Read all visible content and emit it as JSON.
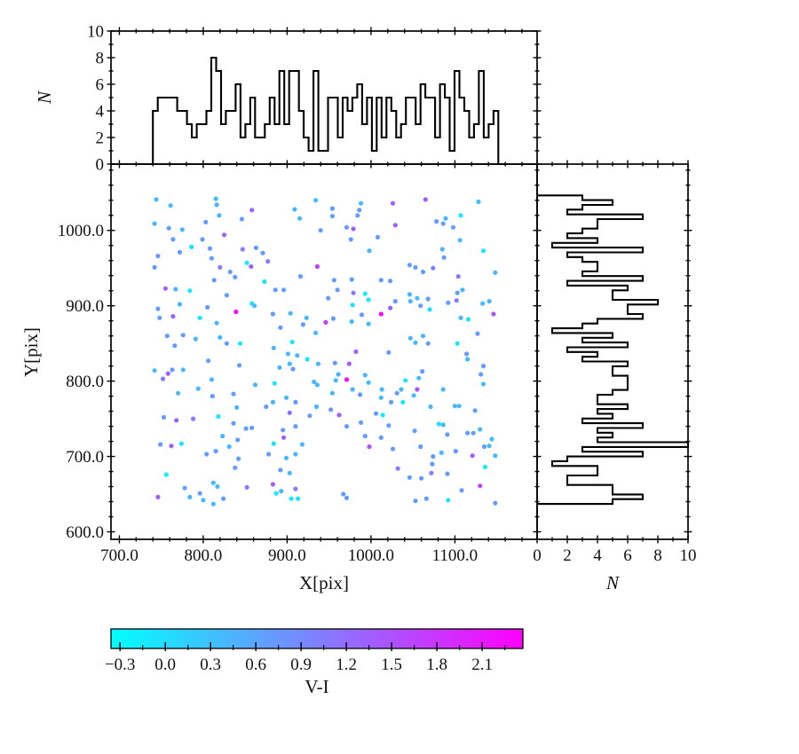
{
  "labels": {
    "x_axis": "X[pix]",
    "y_axis": "Y[pix]",
    "n_top": "N",
    "n_right": "N",
    "colorbar": "V-I"
  },
  "axes": {
    "main": {
      "x_range": [
        690,
        1198
      ],
      "y_range": [
        590,
        1088
      ],
      "x_major_ticks": [
        700,
        800,
        900,
        1000,
        1100
      ],
      "x_tick_labels": [
        "700.0",
        "800.0",
        "900.0",
        "1000.0",
        "1100.0"
      ],
      "x_minor_step": 20,
      "y_major_ticks": [
        600,
        700,
        800,
        900,
        1000
      ],
      "y_tick_labels": [
        "600.0",
        "700.0",
        "800.0",
        "900.0",
        "1000.0"
      ],
      "y_minor_step": 20
    },
    "top_hist": {
      "n_range": [
        0,
        10
      ],
      "n_major_ticks": [
        0,
        2,
        4,
        6,
        8,
        10
      ],
      "n_tick_labels": [
        "0",
        "2",
        "4",
        "6",
        "8",
        "10"
      ],
      "n_minor_ticks": [
        1,
        3,
        5,
        7,
        9
      ]
    },
    "right_hist": {
      "n_range": [
        0,
        10
      ],
      "n_major_ticks": [
        0,
        2,
        4,
        6,
        8,
        10
      ],
      "n_tick_labels": [
        "0",
        "2",
        "4",
        "6",
        "8",
        "10"
      ],
      "n_minor_ticks": [
        1,
        3,
        5,
        7,
        9
      ]
    },
    "colorbar": {
      "range": [
        -0.36,
        2.37
      ],
      "major_ticks": [
        -0.3,
        0.0,
        0.3,
        0.6,
        0.9,
        1.2,
        1.5,
        1.8,
        2.1
      ],
      "tick_labels": [
        "−0.3",
        "0.0",
        "0.3",
        "0.6",
        "0.9",
        "1.2",
        "1.5",
        "1.8",
        "2.1"
      ],
      "minor_step": 0.15,
      "colormap": "cool",
      "start_color": "#00ffff",
      "end_color": "#ff00ff"
    }
  },
  "chart_data": {
    "type": "scatter",
    "title": "",
    "xlabel": "X[pix]",
    "ylabel": "Y[pix]",
    "colorbar_label": "V-I",
    "x_range": [
      690,
      1198
    ],
    "y_range": [
      590,
      1088
    ],
    "color_range": [
      -0.36,
      2.37
    ],
    "colormap": "cool",
    "grid": false,
    "marginal_top_histogram": {
      "axis": "x",
      "bin_start": 740,
      "bin_width": 5.8,
      "bin_count": 72,
      "count_range": [
        0,
        10
      ],
      "style": "step",
      "color": "#000000"
    },
    "marginal_right_histogram": {
      "axis": "y",
      "bin_start": 637,
      "bin_width": 6.3,
      "bin_count": 65,
      "count_range": [
        0,
        10
      ],
      "style": "step",
      "color": "#000000"
    },
    "points": [
      [
        744,
        1041,
        0.4
      ],
      [
        761,
        1033,
        0.4
      ],
      [
        934,
        1040,
        0.35
      ],
      [
        815,
        1042,
        0.4
      ],
      [
        816,
        1034,
        0.45
      ],
      [
        858,
        1027,
        1.3
      ],
      [
        909,
        1028,
        0.4
      ],
      [
        819,
        1020,
        0.45
      ],
      [
        846,
        1015,
        0.7
      ],
      [
        742,
        1009,
        0.4
      ],
      [
        759,
        1003,
        0.7
      ],
      [
        803,
        1011,
        0.7
      ],
      [
        775,
        1001,
        0.4
      ],
      [
        915,
        1016,
        0.4
      ],
      [
        940,
        1000,
        0.7
      ],
      [
        825,
        994,
        1.3
      ],
      [
        764,
        988,
        0.7
      ],
      [
        799,
        988,
        0.7
      ],
      [
        786,
        978,
        -0.05
      ],
      [
        808,
        976,
        0.7
      ],
      [
        847,
        975,
        1.0
      ],
      [
        863,
        977,
        0.7
      ],
      [
        772,
        971,
        0.7
      ],
      [
        810,
        963,
        0.7
      ],
      [
        746,
        966,
        0.7
      ],
      [
        871,
        970,
        0.7
      ],
      [
        877,
        959,
        1.05
      ],
      [
        852,
        957,
        -0.1
      ],
      [
        857,
        952,
        1.3
      ],
      [
        742,
        951,
        0.7
      ],
      [
        820,
        951,
        1.05
      ],
      [
        832,
        945,
        0.7
      ],
      [
        838,
        938,
        0.7
      ],
      [
        813,
        934,
        0.7
      ],
      [
        916,
        939,
        0.7
      ],
      [
        936,
        952,
        1.7
      ],
      [
        873,
        932,
        -0.05
      ],
      [
        886,
        921,
        0.7
      ],
      [
        896,
        921,
        0.7
      ],
      [
        755,
        923,
        1.35
      ],
      [
        767,
        922,
        0.4
      ],
      [
        784,
        920,
        -0.1
      ],
      [
        828,
        914,
        0.7
      ],
      [
        772,
        902,
        0.4
      ],
      [
        858,
        903,
        -0.05
      ],
      [
        861,
        900,
        0.4
      ],
      [
        805,
        898,
        0.7
      ],
      [
        839,
        892,
        2.3
      ],
      [
        746,
        896,
        0.7
      ],
      [
        748,
        884,
        0.7
      ],
      [
        764,
        886,
        1.35
      ],
      [
        796,
        884,
        -0.1
      ],
      [
        816,
        877,
        0.4
      ],
      [
        883,
        889,
        0.7
      ],
      [
        904,
        890,
        0.4
      ],
      [
        892,
        871,
        0.7
      ],
      [
        919,
        875,
        0.7
      ],
      [
        923,
        884,
        0.4
      ],
      [
        934,
        864,
        0.4
      ],
      [
        757,
        860,
        0.7
      ],
      [
        776,
        861,
        0.7
      ],
      [
        791,
        856,
        0.4
      ],
      [
        820,
        858,
        0.4
      ],
      [
        828,
        850,
        0.7
      ],
      [
        844,
        850,
        -0.1
      ],
      [
        766,
        847,
        0.7
      ],
      [
        884,
        844,
        0.4
      ],
      [
        906,
        852,
        -0.05
      ],
      [
        988,
        1036,
        0.4
      ],
      [
        954,
        1029,
        0.7
      ],
      [
        954,
        1019,
        0.7
      ],
      [
        986,
        1027,
        0.7
      ],
      [
        984,
        1020,
        0.7
      ],
      [
        1026,
        1036,
        1.35
      ],
      [
        1065,
        1041,
        1.35
      ],
      [
        1128,
        1038,
        0.4
      ],
      [
        971,
        1004,
        0.7
      ],
      [
        979,
        1002,
        1.3
      ],
      [
        1029,
        1007,
        1.35
      ],
      [
        1078,
        1012,
        0.7
      ],
      [
        1086,
        1009,
        0.7
      ],
      [
        1098,
        1004,
        0.7
      ],
      [
        1089,
        1016,
        0.4
      ],
      [
        1107,
        1020,
        -0.1
      ],
      [
        976,
        988,
        0.7
      ],
      [
        1008,
        991,
        0.7
      ],
      [
        1106,
        987,
        0.4
      ],
      [
        998,
        973,
        0.4
      ],
      [
        1085,
        975,
        0.4
      ],
      [
        1087,
        964,
        0.7
      ],
      [
        1134,
        973,
        -0.05
      ],
      [
        1046,
        954,
        0.7
      ],
      [
        1053,
        951,
        0.7
      ],
      [
        1062,
        945,
        0.7
      ],
      [
        1074,
        950,
        1.0
      ],
      [
        1104,
        939,
        1.05
      ],
      [
        1148,
        944,
        0.4
      ],
      [
        956,
        934,
        0.7
      ],
      [
        977,
        935,
        0.7
      ],
      [
        1012,
        934,
        0.7
      ],
      [
        1023,
        933,
        0.7
      ],
      [
        960,
        921,
        0.7
      ],
      [
        979,
        917,
        1.05
      ],
      [
        993,
        916,
        -0.15
      ],
      [
        997,
        908,
        -0.1
      ],
      [
        949,
        910,
        0.7
      ],
      [
        978,
        901,
        -0.05
      ],
      [
        989,
        888,
        0.7
      ],
      [
        977,
        879,
        0.4
      ],
      [
        946,
        878,
        1.7
      ],
      [
        955,
        883,
        0.7
      ],
      [
        997,
        876,
        0.4
      ],
      [
        1012,
        889,
        2.25
      ],
      [
        1023,
        897,
        1.35
      ],
      [
        1029,
        906,
        0.7
      ],
      [
        1046,
        915,
        0.4
      ],
      [
        1047,
        906,
        0.4
      ],
      [
        1055,
        910,
        0.4
      ],
      [
        1059,
        900,
        0.7
      ],
      [
        1068,
        909,
        0.7
      ],
      [
        1070,
        895,
        -0.05
      ],
      [
        1092,
        904,
        0.7
      ],
      [
        1102,
        907,
        1.05
      ],
      [
        1103,
        917,
        0.7
      ],
      [
        1109,
        921,
        0.4
      ],
      [
        1133,
        903,
        0.4
      ],
      [
        1141,
        906,
        0.4
      ],
      [
        1107,
        884,
        0.4
      ],
      [
        1116,
        882,
        -0.05
      ],
      [
        1146,
        889,
        1.5
      ],
      [
        1127,
        863,
        0.7
      ],
      [
        1047,
        857,
        0.4
      ],
      [
        1053,
        851,
        0.4
      ],
      [
        1062,
        860,
        0.4
      ],
      [
        1068,
        850,
        0.7
      ],
      [
        1103,
        850,
        -0.1
      ],
      [
        901,
        836,
        0.4
      ],
      [
        912,
        834,
        0.4
      ],
      [
        924,
        829,
        -0.05
      ],
      [
        937,
        823,
        0.4
      ],
      [
        806,
        827,
        0.7
      ],
      [
        843,
        821,
        0.7
      ],
      [
        742,
        814,
        0.4
      ],
      [
        758,
        810,
        1.35
      ],
      [
        763,
        815,
        0.7
      ],
      [
        776,
        815,
        0.4
      ],
      [
        752,
        803,
        1.05
      ],
      [
        810,
        802,
        0.4
      ],
      [
        891,
        818,
        0.4
      ],
      [
        907,
        816,
        0.7
      ],
      [
        903,
        823,
        0.4
      ],
      [
        862,
        795,
        0.4
      ],
      [
        885,
        797,
        -0.1
      ],
      [
        770,
        784,
        0.4
      ],
      [
        794,
        790,
        0.4
      ],
      [
        811,
        780,
        0.7
      ],
      [
        836,
        783,
        0.7
      ],
      [
        899,
        778,
        0.4
      ],
      [
        932,
        799,
        0.4
      ],
      [
        936,
        795,
        0.4
      ],
      [
        840,
        765,
        0.4
      ],
      [
        875,
        766,
        0.7
      ],
      [
        883,
        772,
        0.4
      ],
      [
        935,
        766,
        0.4
      ],
      [
        910,
        772,
        0.7
      ],
      [
        753,
        752,
        0.7
      ],
      [
        768,
        748,
        1.35
      ],
      [
        788,
        750,
        1.05
      ],
      [
        818,
        753,
        -0.1
      ],
      [
        836,
        744,
        0.7
      ],
      [
        851,
        737,
        0.7
      ],
      [
        858,
        738,
        0.7
      ],
      [
        903,
        758,
        1.2
      ],
      [
        927,
        754,
        0.7
      ],
      [
        910,
        740,
        0.7
      ],
      [
        895,
        735,
        0.7
      ],
      [
        896,
        725,
        1.35
      ],
      [
        884,
        717,
        -0.05
      ],
      [
        841,
        722,
        0.7
      ],
      [
        831,
        713,
        0.4
      ],
      [
        823,
        727,
        0.4
      ],
      [
        749,
        716,
        0.7
      ],
      [
        762,
        714,
        1.35
      ],
      [
        774,
        717,
        -0.1
      ],
      [
        804,
        703,
        0.7
      ],
      [
        815,
        707,
        0.7
      ],
      [
        842,
        697,
        0.7
      ],
      [
        878,
        703,
        0.7
      ],
      [
        899,
        698,
        0.4
      ],
      [
        910,
        703,
        0.4
      ],
      [
        918,
        716,
        0.4
      ],
      [
        838,
        685,
        0.7
      ],
      [
        892,
        682,
        0.7
      ],
      [
        903,
        678,
        0.4
      ],
      [
        756,
        676,
        -0.2
      ],
      [
        778,
        658,
        0.7
      ],
      [
        784,
        646,
        0.4
      ],
      [
        796,
        651,
        0.7
      ],
      [
        800,
        642,
        0.4
      ],
      [
        812,
        665,
        0.4
      ],
      [
        817,
        660,
        0.4
      ],
      [
        824,
        644,
        0.7
      ],
      [
        812,
        637,
        0.4
      ],
      [
        852,
        659,
        1.05
      ],
      [
        883,
        663,
        1.35
      ],
      [
        887,
        651,
        -0.1
      ],
      [
        893,
        654,
        0.4
      ],
      [
        905,
        644,
        -0.1
      ],
      [
        913,
        644,
        -0.05
      ],
      [
        910,
        657,
        1.05
      ],
      [
        746,
        646,
        1.35
      ],
      [
        982,
        839,
        1.35
      ],
      [
        1021,
        838,
        0.7
      ],
      [
        1114,
        836,
        0.7
      ],
      [
        1115,
        829,
        0.4
      ],
      [
        957,
        824,
        0.7
      ],
      [
        974,
        823,
        1.35
      ],
      [
        1134,
        820,
        0.7
      ],
      [
        961,
        809,
        0.4
      ],
      [
        958,
        801,
        0.4
      ],
      [
        971,
        802,
        2.3
      ],
      [
        993,
        808,
        0.4
      ],
      [
        997,
        798,
        0.4
      ],
      [
        1061,
        813,
        0.7
      ],
      [
        1057,
        804,
        0.4
      ],
      [
        1041,
        801,
        -0.1
      ],
      [
        1131,
        809,
        0.7
      ],
      [
        1134,
        796,
        0.4
      ],
      [
        978,
        789,
        0.4
      ],
      [
        954,
        784,
        0.4
      ],
      [
        987,
        782,
        0.7
      ],
      [
        1013,
        789,
        0.4
      ],
      [
        1012,
        778,
        0.4
      ],
      [
        1036,
        789,
        0.4
      ],
      [
        1031,
        784,
        0.7
      ],
      [
        1055,
        789,
        1.5
      ],
      [
        1051,
        781,
        0.4
      ],
      [
        1038,
        772,
        -0.1
      ],
      [
        1024,
        772,
        0.7
      ],
      [
        1086,
        789,
        0.4
      ],
      [
        1071,
        766,
        0.4
      ],
      [
        1100,
        767,
        0.4
      ],
      [
        1105,
        767,
        0.4
      ],
      [
        1124,
        761,
        0.7
      ],
      [
        952,
        762,
        0.7
      ],
      [
        962,
        755,
        1.35
      ],
      [
        988,
        745,
        0.7
      ],
      [
        971,
        740,
        0.7
      ],
      [
        1006,
        757,
        0.7
      ],
      [
        1014,
        755,
        -0.1
      ],
      [
        1021,
        741,
        0.7
      ],
      [
        993,
        727,
        0.7
      ],
      [
        1012,
        725,
        0.7
      ],
      [
        1052,
        734,
        0.7
      ],
      [
        1081,
        743,
        -0.05
      ],
      [
        1086,
        742,
        0.4
      ],
      [
        1091,
        729,
        0.7
      ],
      [
        1115,
        731,
        0.7
      ],
      [
        1122,
        731,
        0.7
      ],
      [
        1130,
        736,
        0.4
      ],
      [
        998,
        713,
        1.5
      ],
      [
        1026,
        710,
        0.7
      ],
      [
        1059,
        713,
        0.7
      ],
      [
        1074,
        700,
        0.7
      ],
      [
        1073,
        690,
        0.7
      ],
      [
        1084,
        705,
        0.4
      ],
      [
        1101,
        707,
        0.7
      ],
      [
        1121,
        701,
        1.4
      ],
      [
        1135,
        713,
        0.7
      ],
      [
        1141,
        714,
        0.4
      ],
      [
        1144,
        723,
        0.4
      ],
      [
        1136,
        686,
        -0.1
      ],
      [
        1148,
        701,
        0.4
      ],
      [
        1032,
        684,
        1.05
      ],
      [
        1046,
        672,
        0.7
      ],
      [
        1060,
        671,
        0.7
      ],
      [
        1072,
        678,
        1.05
      ],
      [
        1091,
        677,
        0.7
      ],
      [
        1108,
        655,
        0.7
      ],
      [
        1130,
        661,
        1.6
      ],
      [
        967,
        650,
        0.7
      ],
      [
        971,
        645,
        0.7
      ],
      [
        1053,
        641,
        0.7
      ],
      [
        1066,
        644,
        0.7
      ],
      [
        1092,
        642,
        -0.1
      ],
      [
        1148,
        638,
        0.7
      ]
    ]
  }
}
